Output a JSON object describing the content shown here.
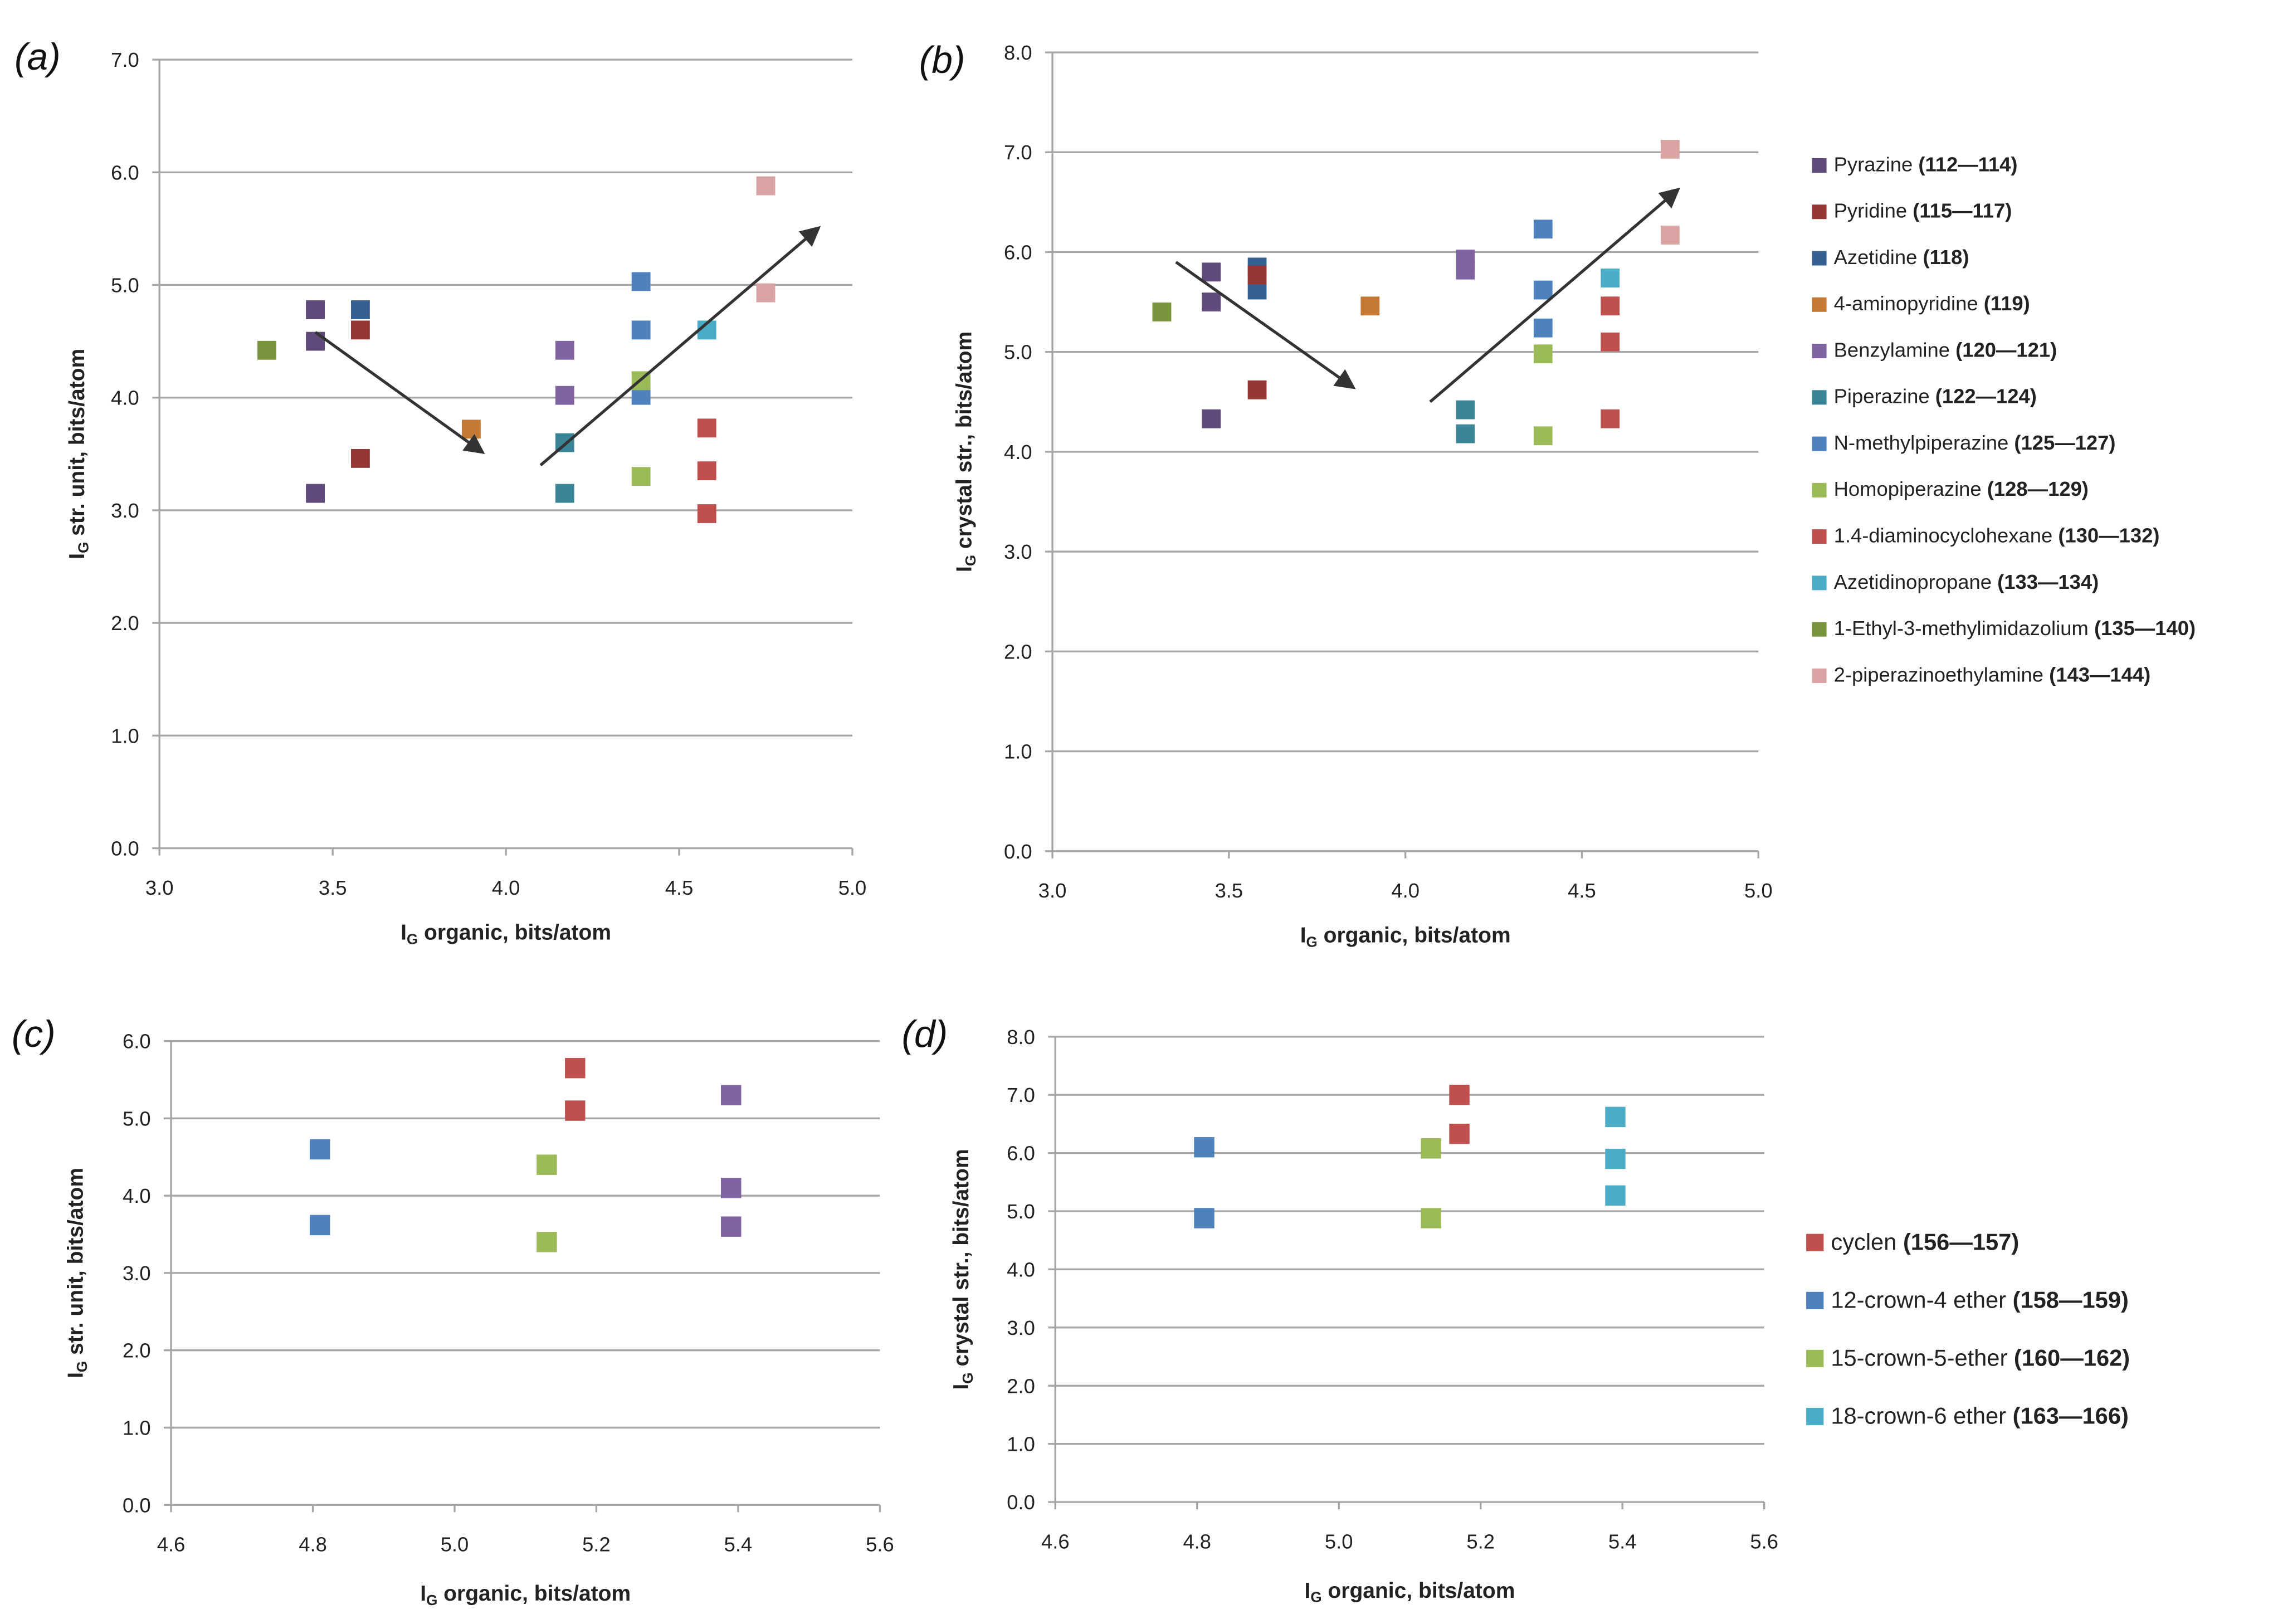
{
  "colors": {
    "pyrazine": "#604a7b",
    "pyridine": "#953735",
    "azetidine": "#376092",
    "aminopyridine": "#c47a35",
    "benzylamine": "#8064a2",
    "piperazine": "#3b8599",
    "nmp": "#4f81bd",
    "homopiperazine": "#9bbb59",
    "dach": "#c0504d",
    "azetidinopropane": "#4bacc6",
    "emim": "#77933c",
    "pipet": "#d9a3a3",
    "cyclen": "#c0504d",
    "crown12": "#4f81bd",
    "crown15": "#9bbb59",
    "crown18": "#4bacc6",
    "crown18c": "#8064a2",
    "grid": "#a6a6a6",
    "arrow": "#333333"
  },
  "legend_top": [
    {
      "name": "Pyrazine",
      "range": "(112—114)",
      "key": "pyrazine"
    },
    {
      "name": "Pyridine",
      "range": "(115—117)",
      "key": "pyridine"
    },
    {
      "name": "Azetidine",
      "range": "(118)",
      "key": "azetidine"
    },
    {
      "name": "4-aminopyridine",
      "range": "(119)",
      "key": "aminopyridine"
    },
    {
      "name": "Benzylamine",
      "range": "(120—121)",
      "key": "benzylamine"
    },
    {
      "name": "Piperazine",
      "range": "(122—124)",
      "key": "piperazine"
    },
    {
      "name": "N-methylpiperazine",
      "range": "(125—127)",
      "key": "nmp"
    },
    {
      "name": "Homopiperazine",
      "range": "(128—129)",
      "key": "homopiperazine"
    },
    {
      "name": "1.4-diaminocyclohexane",
      "range": "(130—132)",
      "key": "dach"
    },
    {
      "name": "Azetidinopropane",
      "range": "(133—134)",
      "key": "azetidinopropane"
    },
    {
      "name": "1-Ethyl-3-methylimidazolium",
      "range": "(135—140)",
      "key": "emim"
    },
    {
      "name": "2-piperazinoethylamine",
      "range": "(143—144)",
      "key": "pipet"
    }
  ],
  "legend_bottom": [
    {
      "name": "cyclen",
      "range": "(156—157)",
      "key": "cyclen"
    },
    {
      "name": "12-crown-4 ether",
      "range": "(158—159)",
      "key": "crown12"
    },
    {
      "name": "15-crown-5-ether",
      "range": "(160—162)",
      "key": "crown15"
    },
    {
      "name": "18-crown-6 ether",
      "range": "(163—166)",
      "key": "crown18"
    }
  ],
  "chart_data": [
    {
      "panel": "(a)",
      "type": "scatter",
      "xlabel_main": "I",
      "xlabel_sub": "G",
      "xlabel_rest": " organic, bits/atom",
      "ylabel_main": "I",
      "ylabel_sub": "G",
      "ylabel_rest": " str. unit, bits/atom",
      "xlim": [
        3.0,
        5.0
      ],
      "ylim": [
        0.0,
        7.0
      ],
      "xstep": 0.5,
      "ystep": 1.0,
      "xticks": [
        "3.0",
        "3.5",
        "4.0",
        "4.5",
        "5.0"
      ],
      "yticks": [
        "0.0",
        "1.0",
        "2.0",
        "3.0",
        "4.0",
        "5.0",
        "6.0",
        "7.0"
      ],
      "grid": true,
      "series": [
        {
          "key": "pyrazine",
          "points": [
            [
              3.45,
              4.78
            ],
            [
              3.45,
              4.5
            ],
            [
              3.45,
              3.15
            ]
          ]
        },
        {
          "key": "pyridine",
          "points": [
            [
              3.58,
              4.6
            ],
            [
              3.58,
              3.46
            ]
          ]
        },
        {
          "key": "azetidine",
          "points": [
            [
              3.58,
              4.78
            ]
          ]
        },
        {
          "key": "aminopyridine",
          "points": [
            [
              3.9,
              3.72
            ]
          ]
        },
        {
          "key": "benzylamine",
          "points": [
            [
              4.17,
              4.42
            ],
            [
              4.17,
              4.02
            ]
          ]
        },
        {
          "key": "piperazine",
          "points": [
            [
              4.17,
              3.6
            ],
            [
              4.17,
              3.15
            ]
          ]
        },
        {
          "key": "nmp",
          "points": [
            [
              4.39,
              5.03
            ],
            [
              4.39,
              4.6
            ],
            [
              4.39,
              4.02
            ]
          ]
        },
        {
          "key": "homopiperazine",
          "points": [
            [
              4.39,
              4.15
            ],
            [
              4.39,
              3.3
            ]
          ]
        },
        {
          "key": "dach",
          "points": [
            [
              4.58,
              3.73
            ],
            [
              4.58,
              3.35
            ],
            [
              4.58,
              2.97
            ]
          ]
        },
        {
          "key": "azetidinopropane",
          "points": [
            [
              4.58,
              4.6
            ]
          ]
        },
        {
          "key": "emim",
          "points": [
            [
              3.31,
              4.42
            ]
          ]
        },
        {
          "key": "pipet",
          "points": [
            [
              4.75,
              5.88
            ],
            [
              4.75,
              4.93
            ]
          ]
        }
      ],
      "arrows": [
        [
          [
            3.45,
            4.58
          ],
          [
            3.93,
            3.52
          ]
        ],
        [
          [
            4.1,
            3.4
          ],
          [
            4.9,
            5.5
          ]
        ]
      ]
    },
    {
      "panel": "(b)",
      "type": "scatter",
      "xlabel_main": "I",
      "xlabel_sub": "G",
      "xlabel_rest": " organic, bits/atom",
      "ylabel_main": "I",
      "ylabel_sub": "G",
      "ylabel_rest": " crystal str., bits/atom",
      "xlim": [
        3.0,
        5.0
      ],
      "ylim": [
        0.0,
        8.0
      ],
      "xstep": 0.5,
      "ystep": 1.0,
      "xticks": [
        "3.0",
        "3.5",
        "4.0",
        "4.5",
        "5.0"
      ],
      "yticks": [
        "0.0",
        "1.0",
        "2.0",
        "3.0",
        "4.0",
        "5.0",
        "6.0",
        "7.0",
        "8.0"
      ],
      "grid": true,
      "legend": "right",
      "series": [
        {
          "key": "pyrazine",
          "points": [
            [
              3.45,
              5.8
            ],
            [
              3.45,
              5.5
            ],
            [
              3.45,
              4.33
            ]
          ]
        },
        {
          "key": "azetidine",
          "points": [
            [
              3.58,
              5.85
            ],
            [
              3.58,
              5.62
            ]
          ]
        },
        {
          "key": "pyridine",
          "points": [
            [
              3.58,
              5.77
            ],
            [
              3.58,
              4.62
            ]
          ]
        },
        {
          "key": "aminopyridine",
          "points": [
            [
              3.9,
              5.46
            ]
          ]
        },
        {
          "key": "benzylamine",
          "points": [
            [
              4.17,
              5.93
            ],
            [
              4.17,
              5.82
            ]
          ]
        },
        {
          "key": "piperazine",
          "points": [
            [
              4.17,
              4.42
            ],
            [
              4.17,
              4.18
            ]
          ]
        },
        {
          "key": "nmp",
          "points": [
            [
              4.39,
              6.23
            ],
            [
              4.39,
              5.62
            ],
            [
              4.39,
              5.24
            ]
          ]
        },
        {
          "key": "homopiperazine",
          "points": [
            [
              4.39,
              4.98
            ],
            [
              4.39,
              4.16
            ]
          ]
        },
        {
          "key": "dach",
          "points": [
            [
              4.58,
              5.46
            ],
            [
              4.58,
              5.1
            ],
            [
              4.58,
              4.33
            ]
          ]
        },
        {
          "key": "azetidinopropane",
          "points": [
            [
              4.58,
              5.74
            ]
          ]
        },
        {
          "key": "emim",
          "points": [
            [
              3.31,
              5.4
            ]
          ]
        },
        {
          "key": "pipet",
          "points": [
            [
              4.75,
              7.03
            ],
            [
              4.75,
              6.17
            ]
          ]
        }
      ],
      "arrows": [
        [
          [
            3.35,
            5.9
          ],
          [
            3.85,
            4.65
          ]
        ],
        [
          [
            4.07,
            4.5
          ],
          [
            4.77,
            6.62
          ]
        ]
      ]
    },
    {
      "panel": "(c)",
      "type": "scatter",
      "xlabel_main": "I",
      "xlabel_sub": "G",
      "xlabel_rest": " organic, bits/atom",
      "ylabel_main": "I",
      "ylabel_sub": "G",
      "ylabel_rest": " str. unit, bits/atom",
      "xlim": [
        4.6,
        5.6
      ],
      "ylim": [
        0.0,
        6.0
      ],
      "xstep": 0.2,
      "ystep": 1.0,
      "xticks": [
        "4.6",
        "4.8",
        "5.0",
        "5.2",
        "5.4",
        "5.6"
      ],
      "yticks": [
        "0.0",
        "1.0",
        "2.0",
        "3.0",
        "4.0",
        "5.0",
        "6.0"
      ],
      "grid": true,
      "series": [
        {
          "key": "cyclen",
          "points": [
            [
              5.17,
              5.65
            ],
            [
              5.17,
              5.1
            ]
          ]
        },
        {
          "key": "crown12",
          "points": [
            [
              4.81,
              4.6
            ],
            [
              4.81,
              3.62
            ]
          ]
        },
        {
          "key": "crown15",
          "points": [
            [
              5.13,
              4.4
            ],
            [
              5.13,
              3.4
            ]
          ]
        },
        {
          "key": "crown18c",
          "points": [
            [
              5.39,
              5.3
            ],
            [
              5.39,
              4.1
            ],
            [
              5.39,
              3.6
            ]
          ]
        }
      ],
      "arrows": []
    },
    {
      "panel": "(d)",
      "type": "scatter",
      "xlabel_main": "I",
      "xlabel_sub": "G",
      "xlabel_rest": " organic, bits/atom",
      "ylabel_main": "I",
      "ylabel_sub": "G",
      "ylabel_rest": " crystal str., bits/atom",
      "xlim": [
        4.6,
        5.6
      ],
      "ylim": [
        0.0,
        8.0
      ],
      "xstep": 0.2,
      "ystep": 1.0,
      "xticks": [
        "4.6",
        "4.8",
        "5.0",
        "5.2",
        "5.4",
        "5.6"
      ],
      "yticks": [
        "0.0",
        "1.0",
        "2.0",
        "3.0",
        "4.0",
        "5.0",
        "6.0",
        "7.0",
        "8.0"
      ],
      "grid": true,
      "legend": "right",
      "series": [
        {
          "key": "cyclen",
          "points": [
            [
              5.17,
              7.0
            ],
            [
              5.17,
              6.33
            ]
          ]
        },
        {
          "key": "crown12",
          "points": [
            [
              4.81,
              6.1
            ],
            [
              4.81,
              4.88
            ]
          ]
        },
        {
          "key": "crown15",
          "points": [
            [
              5.13,
              6.08
            ],
            [
              5.13,
              4.88
            ]
          ]
        },
        {
          "key": "crown18",
          "points": [
            [
              5.39,
              6.62
            ],
            [
              5.39,
              5.9
            ],
            [
              5.39,
              5.27
            ]
          ]
        }
      ],
      "arrows": []
    }
  ]
}
